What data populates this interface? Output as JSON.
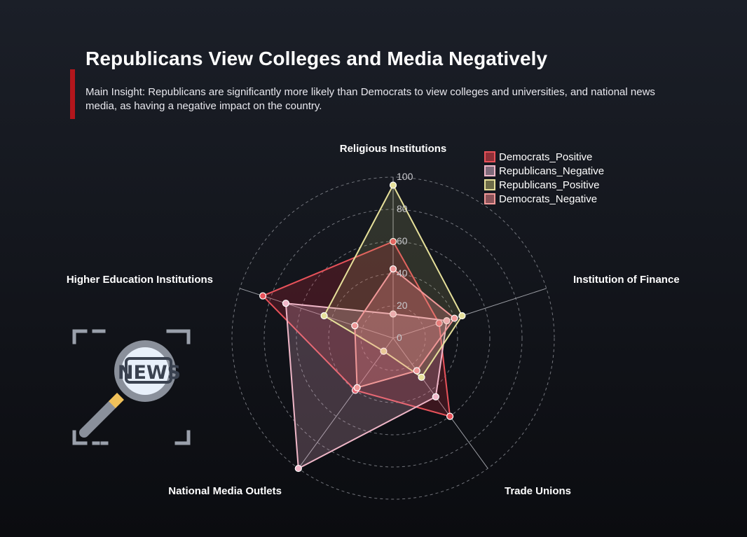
{
  "header": {
    "title": "Republicans View Colleges and Media Negatively",
    "insight": "Main Insight: Republicans are significantly more likely than Democrats to view colleges and universities, and national news media, as having a negative impact on the country."
  },
  "icon": {
    "name": "news-magnifier-icon",
    "text": "NEWS"
  },
  "chart_data": {
    "type": "radar",
    "axes": [
      "Religious Institutions",
      "Institution of Finance",
      "Trade Unions",
      "National Media Outlets",
      "Higher Education Institutions"
    ],
    "ticks": [
      "0",
      "20",
      "40",
      "60",
      "80",
      "100"
    ],
    "range": [
      0,
      100
    ],
    "legend_position": "top-right",
    "series": [
      {
        "name": "Democrats_Positive",
        "values": [
          60,
          30,
          60,
          40,
          85
        ],
        "line": "#e8525a",
        "fill": "rgba(220,40,60,0.22)",
        "legendFill": "#8e3038"
      },
      {
        "name": "Republicans_Negative",
        "values": [
          15,
          35,
          45,
          100,
          70
        ],
        "line": "#f0b7c8",
        "fill": "rgba(235,175,200,0.24)",
        "legendFill": "#7e6a7a"
      },
      {
        "name": "Republicans_Positive",
        "values": [
          95,
          45,
          30,
          10,
          45
        ],
        "line": "#e6e09a",
        "fill": "rgba(200,200,120,0.16)",
        "legendFill": "#6e6c48"
      },
      {
        "name": "Democrats_Negative",
        "values": [
          43,
          40,
          25,
          38,
          25
        ],
        "line": "#f09898",
        "fill": "rgba(240,140,140,0.28)",
        "legendFill": "#8a5258"
      }
    ]
  }
}
